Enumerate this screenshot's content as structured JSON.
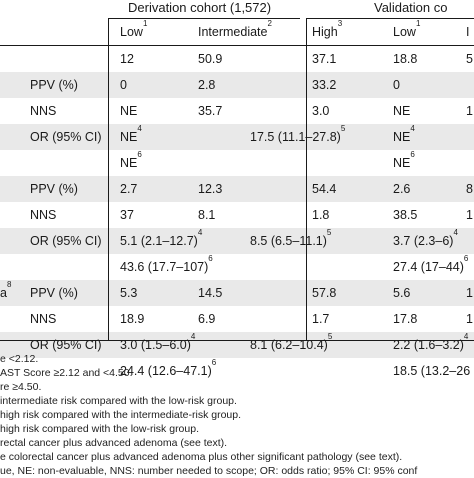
{
  "table": {
    "derivation_header": "Derivation cohort (1,572)",
    "validation_header": "Validation co",
    "col_low": "Low",
    "col_low_sup": "1",
    "col_intermediate": "Intermediate",
    "col_intermediate_sup": "2",
    "col_high": "High",
    "col_high_sup": "3",
    "col_val_low": "Low",
    "col_val_low_sup": "1",
    "col_val_i": "I",
    "rows": [
      {
        "label": "",
        "metric": "",
        "d_low": "12",
        "d_int": "50.9",
        "d_high": "37.1",
        "v_low": "18.8",
        "v_i": "5"
      },
      {
        "label": "",
        "metric": "PPV (%)",
        "d_low": "0",
        "d_int": "2.8",
        "d_high": "33.2",
        "v_low": "0",
        "v_i": ""
      },
      {
        "label": "",
        "metric": "NNS",
        "d_low": "NE",
        "d_int": "35.7",
        "d_high": "3.0",
        "v_low": "NE",
        "v_i": "1"
      },
      {
        "label": "",
        "metric": "OR (95% CI)",
        "d_low": "NE",
        "d_low_sup": "4",
        "d_int": "",
        "d_int_wide": "17.5 (11.1–27.8)",
        "d_int_wide_sup": "5",
        "v_low": "NE",
        "v_low_sup": "4",
        "v_i": ""
      },
      {
        "label": "",
        "metric": "",
        "d_low": "NE",
        "d_low_sup": "6",
        "d_int": "",
        "v_low": "NE",
        "v_low_sup": "6",
        "v_i": ""
      },
      {
        "label": "",
        "metric": "PPV (%)",
        "d_low": "2.7",
        "d_int": "12.3",
        "d_high": "54.4",
        "v_low": "2.6",
        "v_i": "8"
      },
      {
        "label": "",
        "metric": "NNS",
        "d_low": "37",
        "d_int": "8.1",
        "d_high": "1.8",
        "v_low": "38.5",
        "v_i": "1"
      },
      {
        "label": "",
        "metric": "OR (95% CI)",
        "d_low": "5.1 (2.1–12.7)",
        "d_low_sup": "4",
        "d_int_wide": "8.5 (6.5–11.1)",
        "d_int_wide_sup": "5",
        "v_low": "3.7 (2.3–6)",
        "v_low_sup": "4",
        "v_i": ""
      },
      {
        "label": "",
        "metric": "",
        "d_low": "43.6 (17.7–107)",
        "d_low_sup": "6",
        "v_low": "27.4 (17–44)",
        "v_low_sup": "6",
        "v_i": ""
      },
      {
        "label": "a",
        "label_sup": "8",
        "metric": "PPV (%)",
        "d_low": "5.3",
        "d_int": "14.5",
        "d_high": "57.8",
        "v_low": "5.6",
        "v_i": "1"
      },
      {
        "label": "",
        "metric": "NNS",
        "d_low": "18.9",
        "d_int": "6.9",
        "d_high": "1.7",
        "v_low": "17.8",
        "v_i": "1"
      },
      {
        "label": "",
        "metric": "OR (95% CI)",
        "d_low": "3.0 (1.5–6.0)",
        "d_low_sup": "4",
        "d_int_wide": "8.1 (6.2–10.4)",
        "d_int_wide_sup": "5",
        "v_low": "2.2 (1.6–3.2)",
        "v_low_sup": "4",
        "v_i": ""
      },
      {
        "label": "",
        "metric": "",
        "d_low": "24.4 (12.6–47.1)",
        "d_low_sup": "6",
        "v_low": "18.5 (13.2–26",
        "v_i": ""
      }
    ]
  },
  "footnotes": [
    {
      "sup": "",
      "text": "e <2.12."
    },
    {
      "sup": "",
      "text": "AST Score ≥2.12 and <4.50."
    },
    {
      "sup": "",
      "text": "re ≥4.50."
    },
    {
      "sup": "",
      "text": "intermediate risk compared with the low-risk group."
    },
    {
      "sup": "",
      "text": "high risk compared with the intermediate-risk group."
    },
    {
      "sup": "",
      "text": "high risk compared with the low-risk group."
    },
    {
      "sup": "",
      "text": "rectal cancer plus advanced adenoma (see text)."
    },
    {
      "sup": "",
      "text": "e colorectal cancer plus advanced adenoma plus other significant pathology (see text)."
    },
    {
      "sup": "",
      "text": "ue, NE: non-evaluable, NNS: number needed to scope; OR: odds ratio; 95% CI: 95% conf"
    }
  ]
}
